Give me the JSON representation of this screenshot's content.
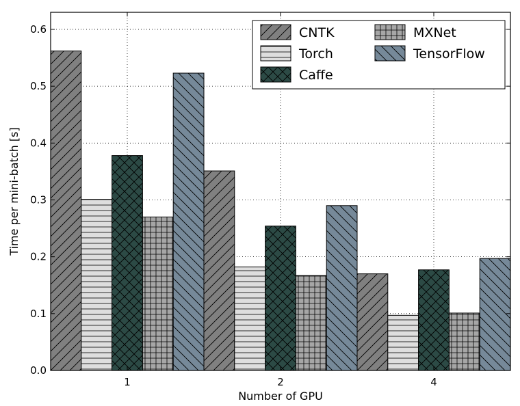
{
  "chart_data": {
    "type": "bar",
    "title": "",
    "xlabel": "Number of GPU",
    "ylabel": "Time per mini-batch [s]",
    "categories": [
      "1",
      "2",
      "4"
    ],
    "ylim": [
      0,
      0.63
    ],
    "yticks": [
      "0.0",
      "0.1",
      "0.2",
      "0.3",
      "0.4",
      "0.5",
      "0.6"
    ],
    "grid": true,
    "legend_position": "top-right",
    "series": [
      {
        "name": "CNTK",
        "values": [
          0.562,
          0.351,
          0.17
        ],
        "color": "#808080",
        "pattern": "diag-fwd"
      },
      {
        "name": "Torch",
        "values": [
          0.301,
          0.182,
          0.097
        ],
        "color": "#dedede",
        "pattern": "horizontal"
      },
      {
        "name": "Caffe",
        "values": [
          0.378,
          0.254,
          0.177
        ],
        "color": "#2c4a45",
        "pattern": "cross"
      },
      {
        "name": "MXNet",
        "values": [
          0.27,
          0.167,
          0.101
        ],
        "color": "#a6a6a6",
        "pattern": "grid"
      },
      {
        "name": "TensorFlow",
        "values": [
          0.523,
          0.29,
          0.197
        ],
        "color": "#768999",
        "pattern": "diag-back"
      }
    ]
  }
}
